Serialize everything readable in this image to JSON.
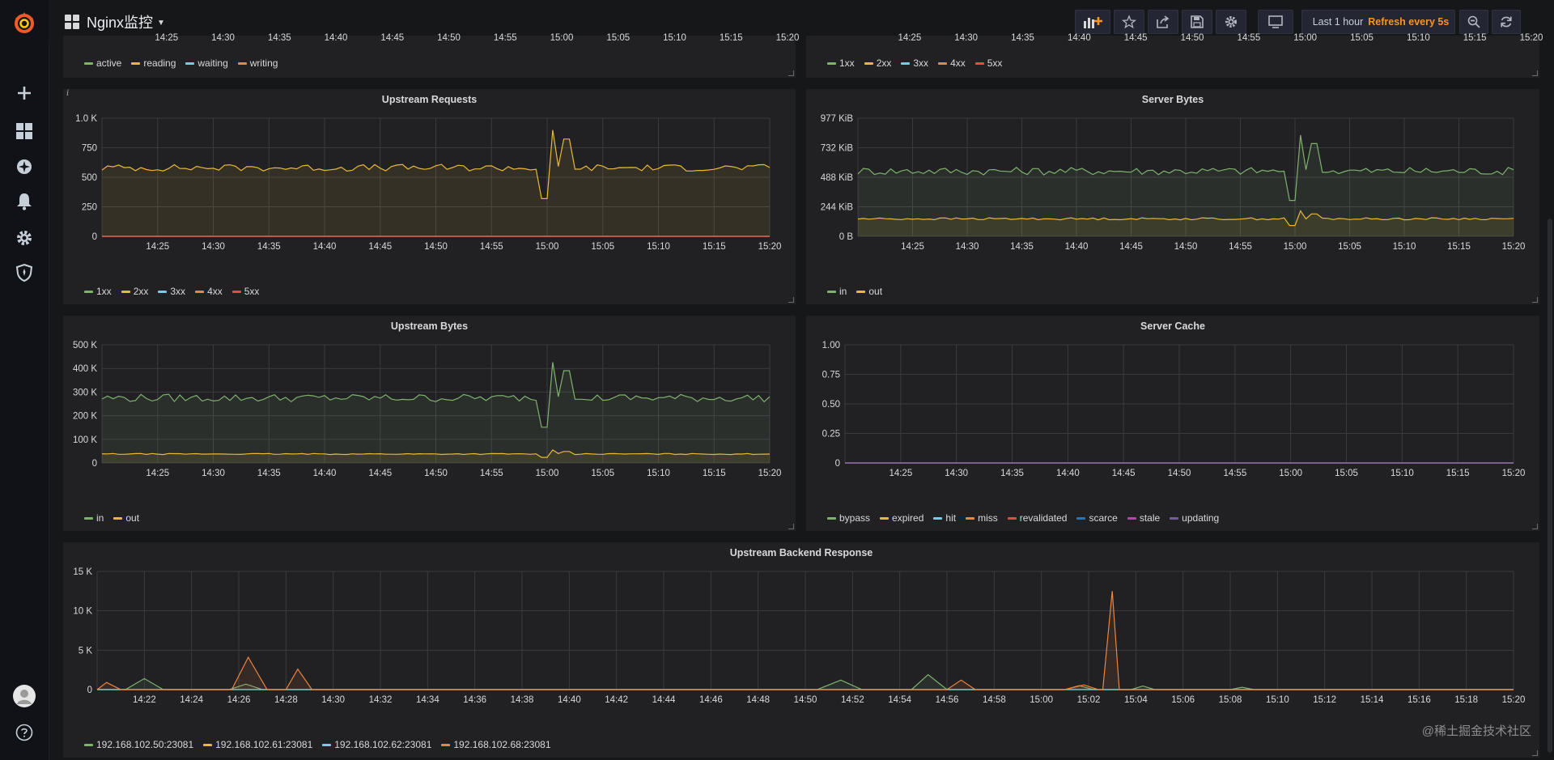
{
  "colors": {
    "green": "#7eb26d",
    "yellow": "#eab839",
    "cyan": "#6ed0e0",
    "orange": "#ef843c",
    "red": "#e24d42",
    "blue": "#1f78c1",
    "pink": "#ba43a9",
    "purple": "#705da0",
    "refresh": "#f79520",
    "logo": "#f05a28"
  },
  "sidebar": {
    "logo_icon": "grafana-logo-icon",
    "items": [
      {
        "icon": "plus-icon"
      },
      {
        "icon": "dashboards-grid-icon"
      },
      {
        "icon": "explore-compass-icon"
      },
      {
        "icon": "alerting-bell-icon"
      },
      {
        "icon": "configuration-gear-icon"
      },
      {
        "icon": "server-admin-shield-icon"
      }
    ],
    "bottom": [
      {
        "icon": "user-avatar-icon"
      },
      {
        "icon": "help-icon"
      }
    ]
  },
  "header": {
    "title": "Nginx监控",
    "buttons": [
      {
        "icon": "add-panel-icon"
      },
      {
        "icon": "star-icon"
      },
      {
        "icon": "share-icon"
      },
      {
        "icon": "save-icon"
      },
      {
        "icon": "settings-gear-icon"
      },
      {
        "icon": "tv-mode-icon"
      },
      {
        "icon": "zoom-out-icon"
      },
      {
        "icon": "refresh-icon"
      }
    ],
    "time_range": "Last 1 hour",
    "refresh": "Refresh every 5s"
  },
  "top_partial": {
    "left_ticks": [
      "14:25",
      "14:30",
      "14:35",
      "14:40",
      "14:45",
      "14:50",
      "14:55",
      "15:00",
      "15:05",
      "15:10",
      "15:15",
      "15:20"
    ],
    "left_legend": [
      "active",
      "reading",
      "waiting",
      "writing"
    ],
    "right_ticks": [
      "14:25",
      "14:30",
      "14:35",
      "14:40",
      "14:45",
      "14:50",
      "14:55",
      "15:00",
      "15:05",
      "15:10",
      "15:15",
      "15:20"
    ],
    "right_legend": [
      "1xx",
      "2xx",
      "3xx",
      "4xx",
      "5xx"
    ]
  },
  "watermark": "@稀土掘金技术社区",
  "chart_data": [
    {
      "id": "upstream-requests",
      "type": "area",
      "title": "Upstream Requests",
      "x": [
        "14:25",
        "14:30",
        "14:35",
        "14:40",
        "14:45",
        "14:50",
        "14:55",
        "15:00",
        "15:05",
        "15:10",
        "15:15",
        "15:20"
      ],
      "y_ticks": [
        "0",
        "250",
        "500",
        "750",
        "1.0 K"
      ],
      "ylim": [
        0,
        1000
      ],
      "xlim": [
        "14:20",
        "15:20"
      ],
      "grid": true,
      "legend_position": "bottom-left",
      "legend": [
        "1xx",
        "2xx",
        "3xx",
        "4xx",
        "5xx"
      ],
      "series": [
        {
          "name": "1xx",
          "color": "#7eb26d",
          "profile": "zero",
          "base": 0
        },
        {
          "name": "2xx",
          "color": "#eab839",
          "profile": "A",
          "base": 580
        },
        {
          "name": "3xx",
          "color": "#6ed0e0",
          "profile": "zero",
          "base": 0
        },
        {
          "name": "4xx",
          "color": "#ef843c",
          "profile": "zero",
          "base": 0
        },
        {
          "name": "5xx",
          "color": "#e24d42",
          "profile": "zero",
          "base": 0
        }
      ]
    },
    {
      "id": "server-bytes",
      "type": "area",
      "title": "Server Bytes",
      "x": [
        "14:25",
        "14:30",
        "14:35",
        "14:40",
        "14:45",
        "14:50",
        "14:55",
        "15:00",
        "15:05",
        "15:10",
        "15:15",
        "15:20"
      ],
      "y_ticks": [
        "0 B",
        "244 KiB",
        "488 KiB",
        "732 KiB",
        "977 KiB"
      ],
      "ylim": [
        0,
        977
      ],
      "xlim": [
        "14:20",
        "15:20"
      ],
      "grid": true,
      "legend_position": "bottom-left",
      "legend": [
        "in",
        "out"
      ],
      "series": [
        {
          "name": "in",
          "color": "#7eb26d",
          "profile": "A",
          "base": 540
        },
        {
          "name": "out",
          "color": "#eab839",
          "profile": "B",
          "base": 145
        }
      ]
    },
    {
      "id": "upstream-bytes",
      "type": "area",
      "title": "Upstream Bytes",
      "x": [
        "14:25",
        "14:30",
        "14:35",
        "14:40",
        "14:45",
        "14:50",
        "14:55",
        "15:00",
        "15:05",
        "15:10",
        "15:15",
        "15:20"
      ],
      "y_ticks": [
        "0",
        "100 K",
        "200 K",
        "300 K",
        "400 K",
        "500 K"
      ],
      "ylim": [
        0,
        500
      ],
      "xlim": [
        "14:20",
        "15:20"
      ],
      "grid": true,
      "legend_position": "bottom-left",
      "legend": [
        "in",
        "out"
      ],
      "series": [
        {
          "name": "in",
          "color": "#7eb26d",
          "profile": "A",
          "base": 275
        },
        {
          "name": "out",
          "color": "#eab839",
          "profile": "B",
          "base": 38
        }
      ]
    },
    {
      "id": "server-cache",
      "type": "line",
      "title": "Server Cache",
      "x": [
        "14:25",
        "14:30",
        "14:35",
        "14:40",
        "14:45",
        "14:50",
        "14:55",
        "15:00",
        "15:05",
        "15:10",
        "15:15",
        "15:20"
      ],
      "y_ticks": [
        "0",
        "0.25",
        "0.50",
        "0.75",
        "1.00"
      ],
      "ylim": [
        0,
        1
      ],
      "xlim": [
        "14:20",
        "15:20"
      ],
      "grid": true,
      "legend_position": "bottom-left",
      "legend": [
        "bypass",
        "expired",
        "hit",
        "miss",
        "revalidated",
        "scarce",
        "stale",
        "updating"
      ],
      "series": [
        {
          "name": "bypass",
          "color": "#7eb26d",
          "profile": "zero",
          "base": 0
        },
        {
          "name": "expired",
          "color": "#eab839",
          "profile": "zero",
          "base": 0
        },
        {
          "name": "hit",
          "color": "#6ed0e0",
          "profile": "zero",
          "base": 0
        },
        {
          "name": "miss",
          "color": "#ef843c",
          "profile": "zero",
          "base": 0
        },
        {
          "name": "revalidated",
          "color": "#e24d42",
          "profile": "zero",
          "base": 0
        },
        {
          "name": "scarce",
          "color": "#1f78c1",
          "profile": "zero",
          "base": 0
        },
        {
          "name": "stale",
          "color": "#ba43a9",
          "profile": "zero",
          "base": 0
        },
        {
          "name": "updating",
          "color": "#705da0",
          "profile": "zero",
          "base": 0
        }
      ]
    },
    {
      "id": "upstream-backend-response",
      "type": "area",
      "title": "Upstream Backend Response",
      "x": [
        "14:22",
        "14:24",
        "14:26",
        "14:28",
        "14:30",
        "14:32",
        "14:34",
        "14:36",
        "14:38",
        "14:40",
        "14:42",
        "14:44",
        "14:46",
        "14:48",
        "14:50",
        "14:52",
        "14:54",
        "14:56",
        "14:58",
        "15:00",
        "15:02",
        "15:04",
        "15:06",
        "15:08",
        "15:10",
        "15:12",
        "15:14",
        "15:16",
        "15:18",
        "15:20"
      ],
      "y_ticks": [
        "0",
        "5 K",
        "10 K",
        "15 K"
      ],
      "ylim": [
        0,
        15000
      ],
      "xlim": [
        "14:20",
        "15:20"
      ],
      "grid": true,
      "legend_position": "bottom-left",
      "legend": [
        "192.168.102.50:23081",
        "192.168.102.61:23081",
        "192.168.102.62:23081",
        "192.168.102.68:23081"
      ],
      "series": [
        {
          "name": "192.168.102.50:23081",
          "color": "#7eb26d",
          "points": [
            [
              0,
              0
            ],
            [
              1.2,
              0
            ],
            [
              2,
              1400
            ],
            [
              2.8,
              0
            ],
            [
              5.6,
              0
            ],
            [
              6.3,
              700
            ],
            [
              7,
              0
            ],
            [
              14,
              0
            ],
            [
              30.5,
              0
            ],
            [
              31.5,
              1200
            ],
            [
              32.4,
              0
            ],
            [
              34.5,
              0
            ],
            [
              35.2,
              1900
            ],
            [
              36,
              0
            ],
            [
              41,
              0
            ],
            [
              41.6,
              500
            ],
            [
              42.2,
              0
            ],
            [
              43.8,
              0
            ],
            [
              44.3,
              450
            ],
            [
              44.8,
              0
            ],
            [
              48,
              0
            ],
            [
              48.5,
              300
            ],
            [
              49,
              0
            ],
            [
              60,
              0
            ]
          ]
        },
        {
          "name": "192.168.102.61:23081",
          "color": "#eab839",
          "points": [
            [
              0,
              0
            ],
            [
              60,
              0
            ]
          ]
        },
        {
          "name": "192.168.102.62:23081",
          "color": "#6ed0e0",
          "points": [
            [
              0,
              0
            ],
            [
              60,
              0
            ]
          ]
        },
        {
          "name": "192.168.102.68:23081",
          "color": "#ef843c",
          "points": [
            [
              0,
              0
            ],
            [
              0.4,
              900
            ],
            [
              1,
              0
            ],
            [
              5.7,
              0
            ],
            [
              6.4,
              4100
            ],
            [
              7.2,
              0
            ],
            [
              8,
              0
            ],
            [
              8.5,
              2600
            ],
            [
              9.1,
              0
            ],
            [
              36,
              0
            ],
            [
              36.6,
              1200
            ],
            [
              37.2,
              0
            ],
            [
              41,
              0
            ],
            [
              41.8,
              600
            ],
            [
              42.4,
              0
            ],
            [
              42.6,
              0
            ],
            [
              43,
              12500
            ],
            [
              43.3,
              0
            ],
            [
              60,
              0
            ]
          ]
        }
      ]
    }
  ]
}
